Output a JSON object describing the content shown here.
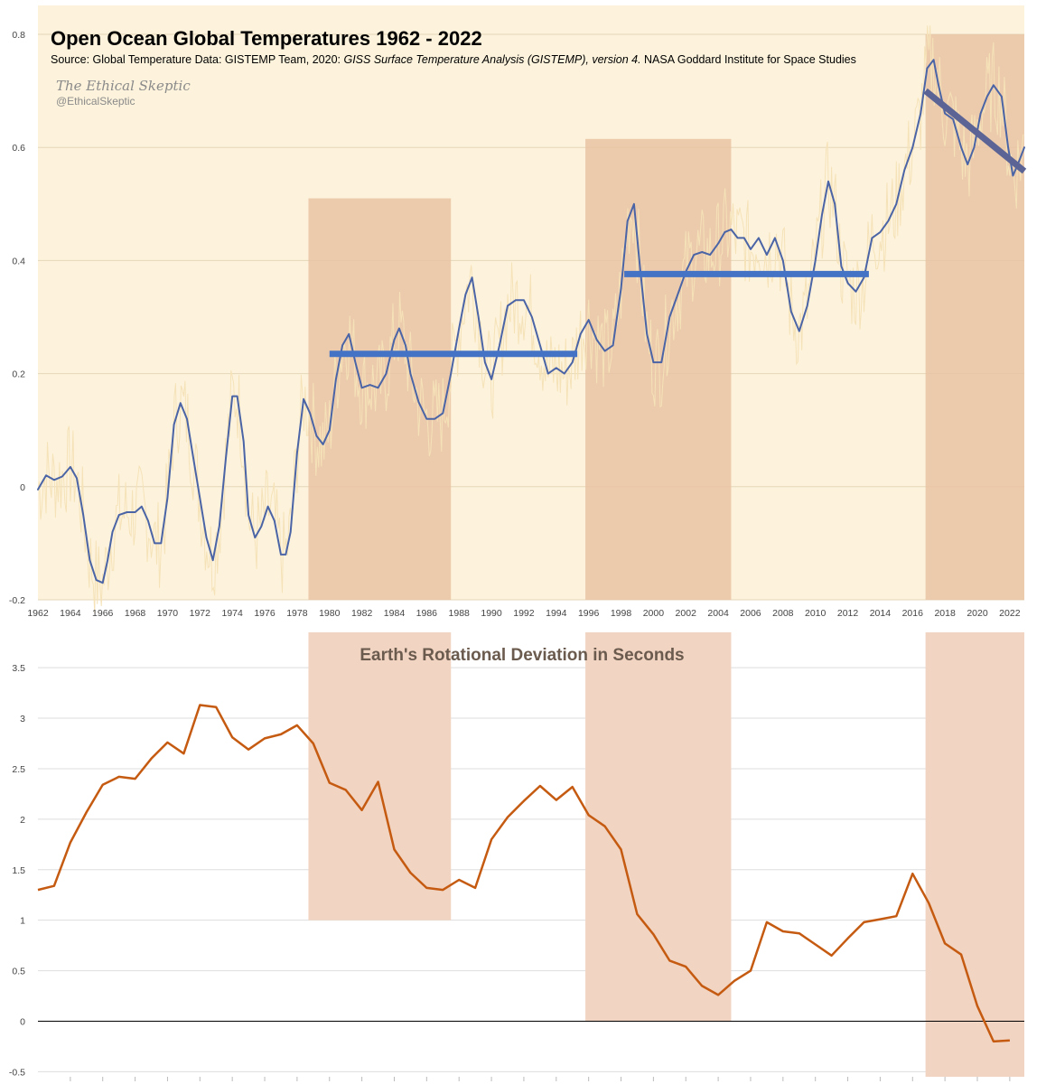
{
  "chart_data": [
    {
      "type": "line",
      "title": "Open Ocean Global Temperatures 1962 - 2022",
      "source_prefix": "Source: Global Temperature Data:  GISTEMP Team, 2020: ",
      "source_italic": "GISS Surface Temperature Analysis (GISTEMP), version 4.",
      "source_suffix": " NASA Goddard Institute for Space Studies",
      "watermark_script": "The Ethical Skeptic",
      "watermark_handle": "@EthicalSkeptic",
      "xlim": [
        1962,
        2022.9
      ],
      "ylim": [
        -0.2,
        0.8
      ],
      "yticks": [
        -0.2,
        0,
        0.2,
        0.4,
        0.6,
        0.8
      ],
      "ytick_labels": [
        "-0.2",
        "0",
        "0.2",
        "0.4",
        "0.6",
        "0.8"
      ],
      "xticks": [
        1962,
        1964,
        1966,
        1968,
        1970,
        1972,
        1974,
        1976,
        1978,
        1980,
        1982,
        1984,
        1986,
        1988,
        1990,
        1992,
        1994,
        1996,
        1998,
        2000,
        2002,
        2004,
        2006,
        2008,
        2010,
        2012,
        2014,
        2016,
        2018,
        2020,
        2022
      ],
      "grid": true,
      "background_color": "#fdf3dc",
      "shaded_periods": [
        {
          "x": [
            1978.7,
            1987.5
          ],
          "y_top": 0.51
        },
        {
          "x": [
            1995.8,
            2004.8
          ],
          "y_top": 0.615
        },
        {
          "x": [
            2016.8,
            2022.9
          ],
          "y_top": 0.8
        }
      ],
      "shade_color": "#e9c3a3",
      "series": [
        {
          "style": "smoothed",
          "color": "#4a64a6",
          "points": [
            [
              1962.0,
              -0.005
            ],
            [
              1962.5,
              0.02
            ],
            [
              1963.0,
              0.012
            ],
            [
              1963.5,
              0.018
            ],
            [
              1964.0,
              0.035
            ],
            [
              1964.4,
              0.015
            ],
            [
              1964.8,
              -0.05
            ],
            [
              1965.2,
              -0.13
            ],
            [
              1965.6,
              -0.165
            ],
            [
              1966.0,
              -0.17
            ],
            [
              1966.3,
              -0.13
            ],
            [
              1966.6,
              -0.08
            ],
            [
              1967.0,
              -0.05
            ],
            [
              1967.5,
              -0.045
            ],
            [
              1968.0,
              -0.045
            ],
            [
              1968.4,
              -0.035
            ],
            [
              1968.8,
              -0.06
            ],
            [
              1969.2,
              -0.1
            ],
            [
              1969.6,
              -0.1
            ],
            [
              1970.0,
              -0.02
            ],
            [
              1970.4,
              0.11
            ],
            [
              1970.8,
              0.148
            ],
            [
              1971.2,
              0.12
            ],
            [
              1971.6,
              0.05
            ],
            [
              1972.0,
              -0.02
            ],
            [
              1972.4,
              -0.09
            ],
            [
              1972.8,
              -0.13
            ],
            [
              1973.2,
              -0.07
            ],
            [
              1973.6,
              0.05
            ],
            [
              1974.0,
              0.16
            ],
            [
              1974.3,
              0.16
            ],
            [
              1974.7,
              0.08
            ],
            [
              1975.0,
              -0.05
            ],
            [
              1975.4,
              -0.09
            ],
            [
              1975.8,
              -0.07
            ],
            [
              1976.2,
              -0.035
            ],
            [
              1976.6,
              -0.06
            ],
            [
              1977.0,
              -0.12
            ],
            [
              1977.3,
              -0.12
            ],
            [
              1977.6,
              -0.08
            ],
            [
              1978.0,
              0.06
            ],
            [
              1978.4,
              0.155
            ],
            [
              1978.8,
              0.13
            ],
            [
              1979.2,
              0.09
            ],
            [
              1979.6,
              0.075
            ],
            [
              1980.0,
              0.1
            ],
            [
              1980.4,
              0.19
            ],
            [
              1980.8,
              0.25
            ],
            [
              1981.2,
              0.27
            ],
            [
              1981.6,
              0.22
            ],
            [
              1982.0,
              0.175
            ],
            [
              1982.5,
              0.18
            ],
            [
              1983.0,
              0.175
            ],
            [
              1983.5,
              0.2
            ],
            [
              1984.0,
              0.26
            ],
            [
              1984.3,
              0.28
            ],
            [
              1984.7,
              0.25
            ],
            [
              1985.0,
              0.2
            ],
            [
              1985.5,
              0.15
            ],
            [
              1986.0,
              0.12
            ],
            [
              1986.5,
              0.12
            ],
            [
              1987.0,
              0.13
            ],
            [
              1987.5,
              0.2
            ],
            [
              1988.0,
              0.28
            ],
            [
              1988.4,
              0.34
            ],
            [
              1988.8,
              0.37
            ],
            [
              1989.2,
              0.3
            ],
            [
              1989.6,
              0.22
            ],
            [
              1990.0,
              0.19
            ],
            [
              1990.5,
              0.25
            ],
            [
              1991.0,
              0.32
            ],
            [
              1991.5,
              0.33
            ],
            [
              1992.0,
              0.33
            ],
            [
              1992.5,
              0.3
            ],
            [
              1993.0,
              0.25
            ],
            [
              1993.5,
              0.2
            ],
            [
              1994.0,
              0.21
            ],
            [
              1994.5,
              0.2
            ],
            [
              1995.0,
              0.22
            ],
            [
              1995.5,
              0.27
            ],
            [
              1996.0,
              0.295
            ],
            [
              1996.5,
              0.26
            ],
            [
              1997.0,
              0.24
            ],
            [
              1997.5,
              0.25
            ],
            [
              1998.0,
              0.35
            ],
            [
              1998.4,
              0.47
            ],
            [
              1998.8,
              0.5
            ],
            [
              1999.2,
              0.38
            ],
            [
              1999.6,
              0.27
            ],
            [
              2000.0,
              0.22
            ],
            [
              2000.5,
              0.22
            ],
            [
              2001.0,
              0.3
            ],
            [
              2001.5,
              0.34
            ],
            [
              2002.0,
              0.38
            ],
            [
              2002.5,
              0.41
            ],
            [
              2003.0,
              0.415
            ],
            [
              2003.5,
              0.41
            ],
            [
              2004.0,
              0.43
            ],
            [
              2004.4,
              0.45
            ],
            [
              2004.8,
              0.455
            ],
            [
              2005.2,
              0.44
            ],
            [
              2005.6,
              0.44
            ],
            [
              2006.0,
              0.42
            ],
            [
              2006.5,
              0.44
            ],
            [
              2007.0,
              0.41
            ],
            [
              2007.5,
              0.44
            ],
            [
              2008.0,
              0.4
            ],
            [
              2008.5,
              0.31
            ],
            [
              2009.0,
              0.275
            ],
            [
              2009.5,
              0.32
            ],
            [
              2010.0,
              0.4
            ],
            [
              2010.4,
              0.48
            ],
            [
              2010.8,
              0.54
            ],
            [
              2011.2,
              0.5
            ],
            [
              2011.6,
              0.39
            ],
            [
              2012.0,
              0.36
            ],
            [
              2012.5,
              0.345
            ],
            [
              2013.0,
              0.37
            ],
            [
              2013.5,
              0.44
            ],
            [
              2014.0,
              0.45
            ],
            [
              2014.5,
              0.47
            ],
            [
              2015.0,
              0.5
            ],
            [
              2015.5,
              0.56
            ],
            [
              2016.0,
              0.6
            ],
            [
              2016.5,
              0.66
            ],
            [
              2016.9,
              0.74
            ],
            [
              2017.3,
              0.755
            ],
            [
              2017.6,
              0.71
            ],
            [
              2018.0,
              0.66
            ],
            [
              2018.5,
              0.65
            ],
            [
              2019.0,
              0.6
            ],
            [
              2019.4,
              0.57
            ],
            [
              2019.8,
              0.6
            ],
            [
              2020.2,
              0.66
            ],
            [
              2020.6,
              0.69
            ],
            [
              2021.0,
              0.71
            ],
            [
              2021.5,
              0.69
            ],
            [
              2021.9,
              0.6
            ],
            [
              2022.2,
              0.55
            ],
            [
              2022.5,
              0.57
            ],
            [
              2022.9,
              0.6
            ]
          ]
        },
        {
          "style": "period-mean",
          "color": "#4472c4",
          "points": [
            [
              1980.0,
              0.235
            ],
            [
              1995.3,
              0.235
            ]
          ]
        },
        {
          "style": "period-mean",
          "color": "#4472c4",
          "points": [
            [
              1998.2,
              0.376
            ],
            [
              2013.3,
              0.376
            ]
          ]
        },
        {
          "style": "trend",
          "color": "#5b6494",
          "points": [
            [
              2016.8,
              0.7
            ],
            [
              2022.9,
              0.558
            ]
          ]
        }
      ],
      "noisy_series_color": "#f5e2b8"
    },
    {
      "type": "line",
      "title": "Earth's Rotational Deviation in Seconds",
      "xlabel": "",
      "ylabel": "",
      "xlim": [
        1962,
        2022.9
      ],
      "ylim": [
        -0.55,
        3.85
      ],
      "yticks": [
        -0.5,
        0,
        0.5,
        1,
        1.5,
        2,
        2.5,
        3,
        3.5
      ],
      "ytick_labels": [
        "-0.5",
        "0",
        "0.5",
        "1",
        "1.5",
        "2",
        "2.5",
        "3",
        "3.5"
      ],
      "grid": true,
      "shaded_periods": [
        {
          "x": [
            1978.7,
            1987.5
          ],
          "y_bottom": 1.0,
          "y_top": 3.85
        },
        {
          "x": [
            1995.8,
            2004.8
          ],
          "y_bottom": 0.0,
          "y_top": 3.85
        },
        {
          "x": [
            2016.8,
            2022.9
          ],
          "y_bottom": -0.55,
          "y_top": 3.85
        }
      ],
      "shade_color": "#f2d4c2",
      "series": [
        {
          "color": "#c55a11",
          "x": [
            1962,
            1963,
            1964,
            1965,
            1966,
            1967,
            1968,
            1969,
            1970,
            1971,
            1972,
            1973,
            1974,
            1975,
            1976,
            1977,
            1978,
            1979,
            1980,
            1981,
            1982,
            1983,
            1984,
            1985,
            1986,
            1987,
            1988,
            1989,
            1990,
            1991,
            1992,
            1993,
            1994,
            1995,
            1996,
            1997,
            1998,
            1999,
            2000,
            2001,
            2002,
            2003,
            2004,
            2005,
            2006,
            2007,
            2008,
            2009,
            2010,
            2011,
            2012,
            2013,
            2014,
            2015,
            2016,
            2017,
            2018,
            2019,
            2020,
            2021,
            2022
          ],
          "values": [
            1.3,
            1.34,
            1.77,
            2.07,
            2.34,
            2.42,
            2.4,
            2.6,
            2.76,
            2.65,
            3.13,
            3.11,
            2.81,
            2.69,
            2.8,
            2.84,
            2.93,
            2.75,
            2.36,
            2.29,
            2.09,
            2.37,
            1.7,
            1.47,
            1.32,
            1.3,
            1.4,
            1.32,
            1.8,
            2.02,
            2.18,
            2.33,
            2.19,
            2.32,
            2.04,
            1.93,
            1.7,
            1.06,
            0.86,
            0.6,
            0.54,
            0.35,
            0.26,
            0.4,
            0.5,
            0.98,
            0.89,
            0.87,
            0.76,
            0.65,
            0.82,
            0.98,
            1.01,
            1.04,
            1.46,
            1.17,
            0.77,
            0.66,
            0.15,
            -0.2,
            -0.19
          ]
        }
      ]
    }
  ]
}
